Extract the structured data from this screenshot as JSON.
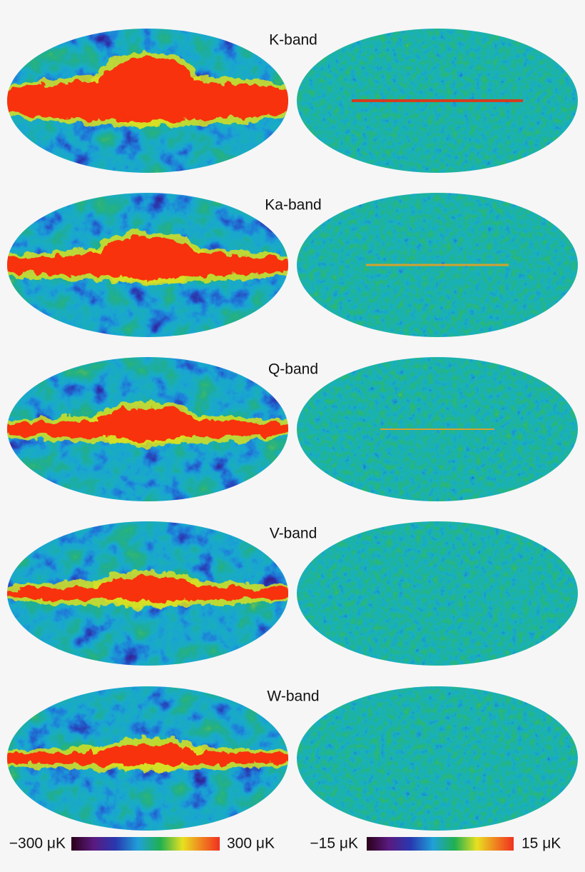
{
  "panels": [
    {
      "title": "K-band"
    },
    {
      "title": "Ka-band"
    },
    {
      "title": "Q-band"
    },
    {
      "title": "V-band"
    },
    {
      "title": "W-band"
    }
  ],
  "colorbars": [
    {
      "min_label": "−300 μK",
      "max_label": "300 μK"
    },
    {
      "min_label": "−15 μK",
      "max_label": "15 μK"
    }
  ]
}
